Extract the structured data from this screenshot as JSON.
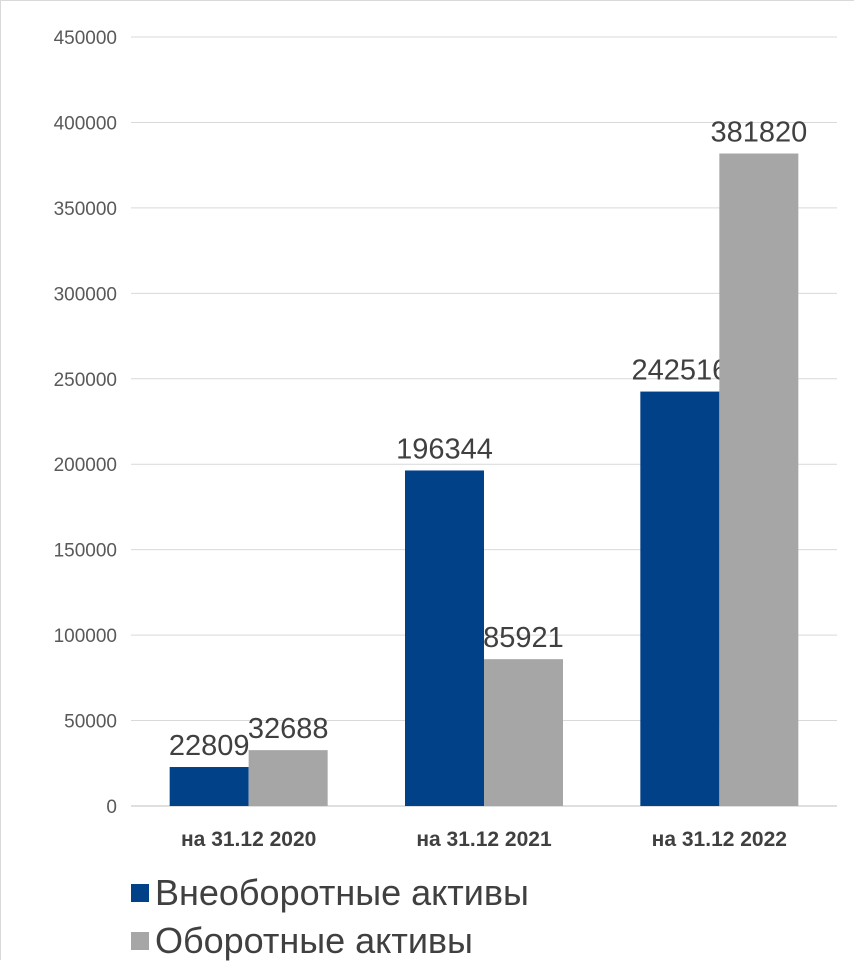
{
  "chart_data": {
    "type": "bar",
    "categories": [
      "на 31.12 2020",
      "на 31.12 2021",
      "на 31.12 2022"
    ],
    "series": [
      {
        "name": "Внеоборотные активы",
        "color": "#004188",
        "values": [
          22809,
          196344,
          242516
        ]
      },
      {
        "name": "Оборотные активы",
        "color": "#a6a6a6",
        "values": [
          32688,
          85921,
          381820
        ]
      }
    ],
    "ylim": [
      0,
      450000
    ],
    "yticks": [
      0,
      50000,
      100000,
      150000,
      200000,
      250000,
      300000,
      350000,
      400000,
      450000
    ],
    "grid": true,
    "legend_position": "bottom-left",
    "title": "",
    "xlabel": "",
    "ylabel": ""
  }
}
